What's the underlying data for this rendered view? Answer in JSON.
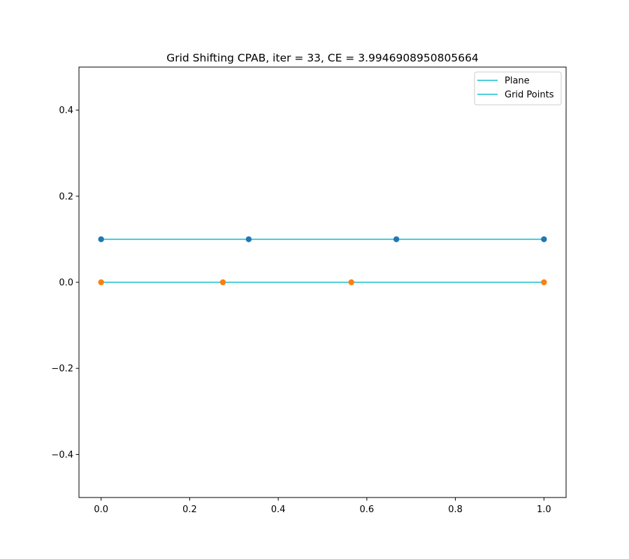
{
  "chart_data": {
    "type": "line",
    "title": "Grid Shifting CPAB, iter = 33, CE = 3.9946908950805664",
    "xlabel": "",
    "ylabel": "",
    "xlim": [
      -0.05,
      1.05
    ],
    "ylim": [
      -0.5,
      0.5
    ],
    "xticks": [
      0.0,
      0.2,
      0.4,
      0.6,
      0.8,
      1.0
    ],
    "xtick_labels": [
      "0.0",
      "0.2",
      "0.4",
      "0.6",
      "0.8",
      "1.0"
    ],
    "yticks": [
      -0.4,
      -0.2,
      0.0,
      0.2,
      0.4
    ],
    "ytick_labels": [
      "−0.4",
      "−0.2",
      "0.0",
      "0.2",
      "0.4"
    ],
    "grid": false,
    "legend_position": "top-right",
    "series": [
      {
        "name": "Plane",
        "line_color": "#17becf",
        "marker_color": "#1f77b4",
        "x": [
          0.0,
          0.3333,
          0.6667,
          1.0
        ],
        "y": [
          0.1,
          0.1,
          0.1,
          0.1
        ]
      },
      {
        "name": "Grid Points",
        "line_color": "#17becf",
        "marker_color": "#ff7f0e",
        "x": [
          0.0,
          0.275,
          0.565,
          1.0
        ],
        "y": [
          0.0,
          0.0,
          0.0,
          0.0
        ]
      }
    ]
  }
}
